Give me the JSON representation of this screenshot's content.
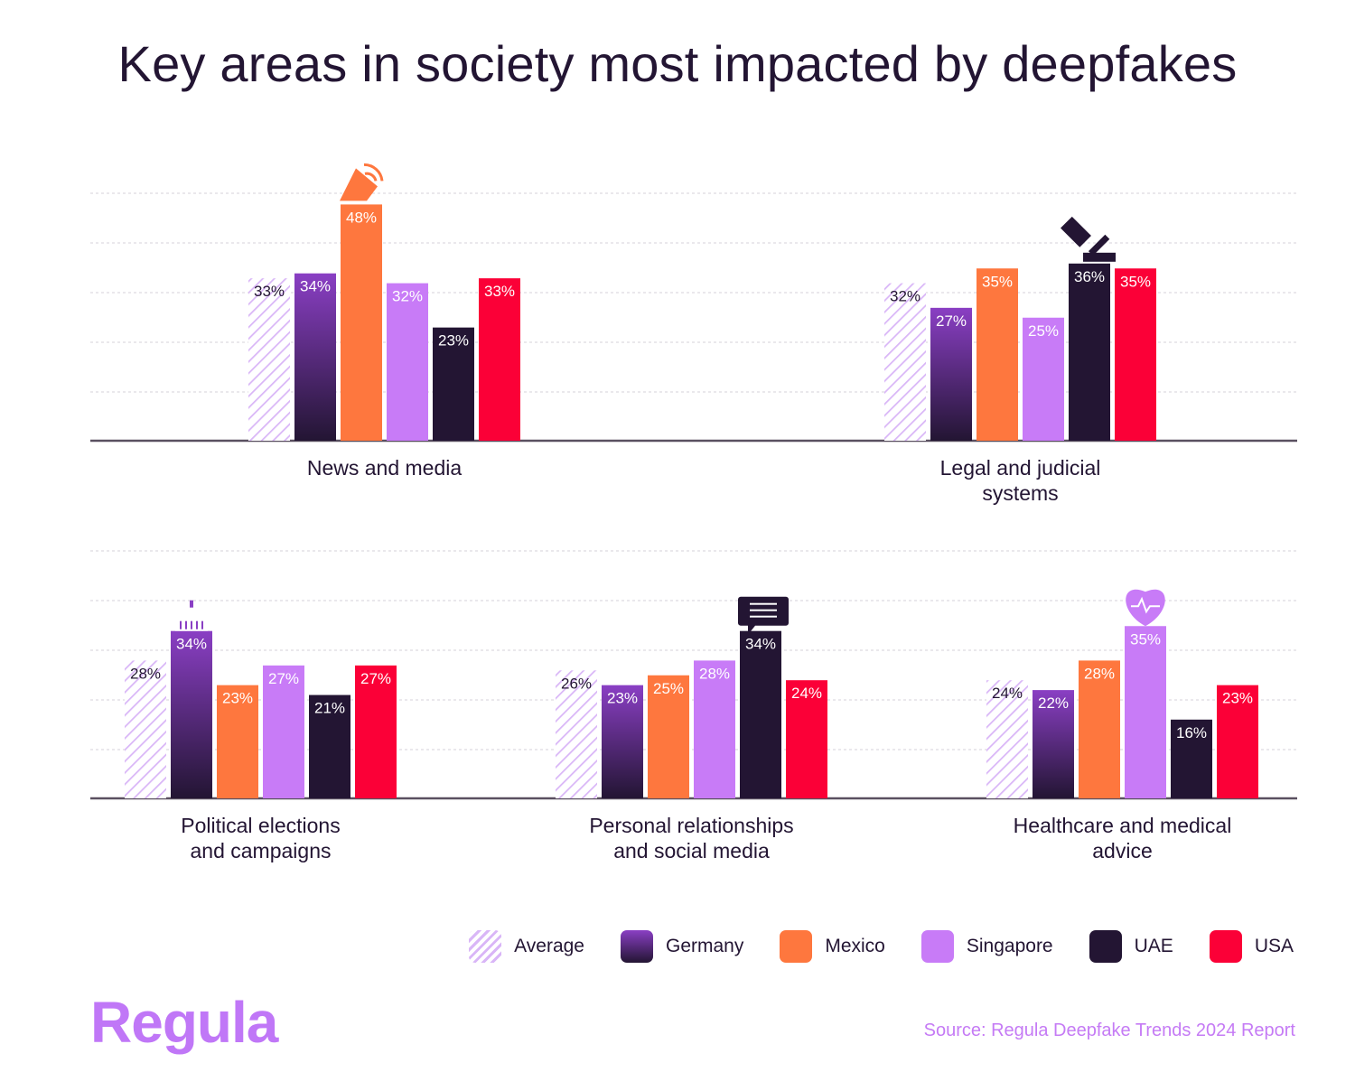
{
  "title": "Key areas in society most impacted by deepfakes",
  "chart_data": {
    "type": "bar",
    "title": "Key areas in society most impacted by deepfakes",
    "series_names": [
      "Average",
      "Germany",
      "Mexico",
      "Singapore",
      "UAE",
      "USA"
    ],
    "value_suffix": "%",
    "ylim": [
      0,
      50
    ],
    "panels": [
      {
        "category": "News and media",
        "values": [
          33,
          34,
          48,
          32,
          23,
          33
        ],
        "icon": "satellite-dish-icon",
        "icon_series": 2
      },
      {
        "category": "Legal and judicial systems",
        "values": [
          32,
          27,
          35,
          25,
          36,
          35
        ],
        "icon": "gavel-icon",
        "icon_series": 4
      },
      {
        "category": "Political elections and campaigns",
        "values": [
          28,
          34,
          23,
          27,
          21,
          27
        ],
        "icon": "capitol-building-icon",
        "icon_series": 1
      },
      {
        "category": "Personal relationships and social media",
        "values": [
          26,
          23,
          25,
          28,
          34,
          24
        ],
        "icon": "chat-bubble-icon",
        "icon_series": 4
      },
      {
        "category": "Healthcare and medical advice",
        "values": [
          24,
          22,
          28,
          35,
          16,
          23
        ],
        "icon": "heartbeat-icon",
        "icon_series": 3
      }
    ]
  },
  "category_lines": [
    [
      "News and media"
    ],
    [
      "Legal and judicial",
      "systems"
    ],
    [
      "Political elections",
      "and campaigns"
    ],
    [
      "Personal relationships",
      "and social media"
    ],
    [
      "Healthcare and medical",
      "advice"
    ]
  ],
  "legend": [
    {
      "label": "Average",
      "color": "hatch"
    },
    {
      "label": "Germany",
      "color": "#8a3fc4"
    },
    {
      "label": "Mexico",
      "color": "#fe773e"
    },
    {
      "label": "Singapore",
      "color": "#c87bf7"
    },
    {
      "label": "UAE",
      "color": "#231533"
    },
    {
      "label": "USA",
      "color": "#fb0037"
    }
  ],
  "colors": {
    "germany_top": "#8a3fc4",
    "germany_bottom": "#231533",
    "mexico": "#fe773e",
    "singapore": "#c87bf7",
    "uae": "#231533",
    "usa": "#fb0037",
    "hatch": "#d9b6f7",
    "text_dark": "#231533",
    "brand": "#c077f7"
  },
  "logo": "Regula",
  "source": "Source: Regula Deepfake Trends 2024 Report"
}
